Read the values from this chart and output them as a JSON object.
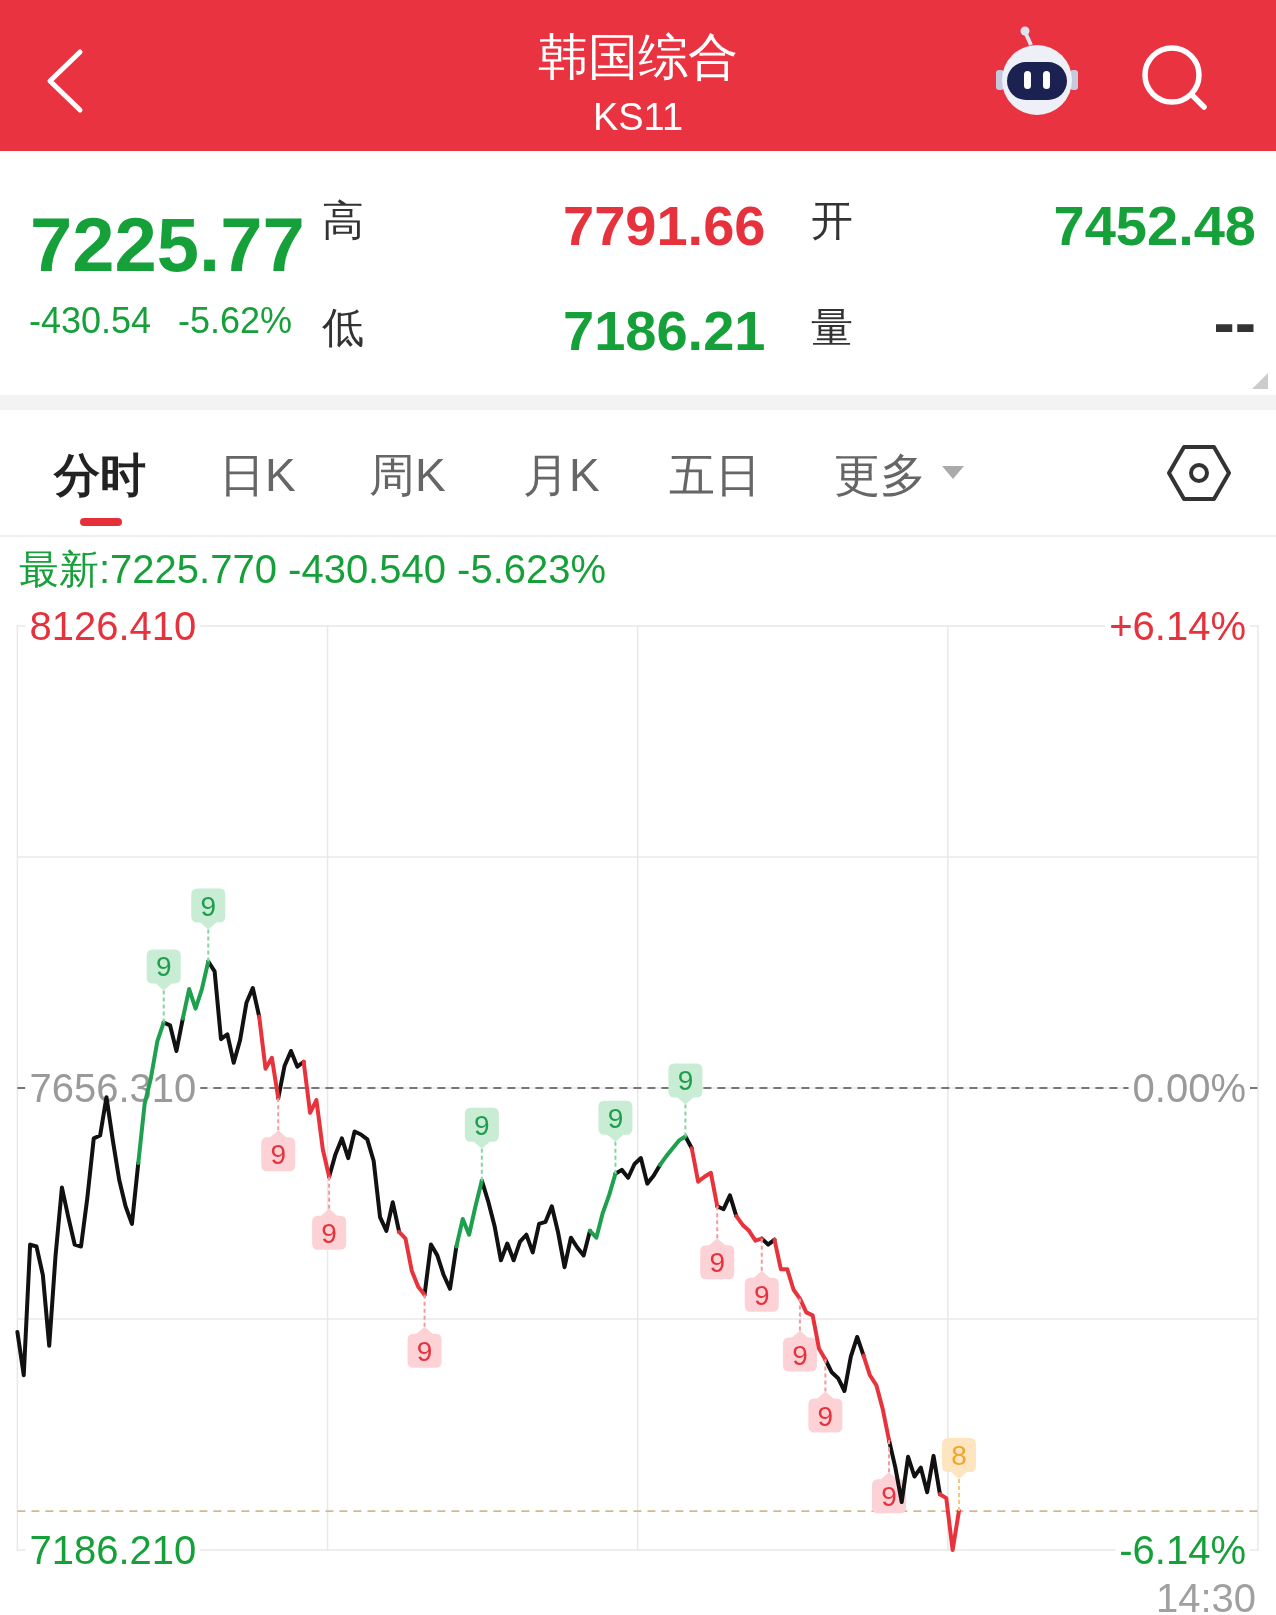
{
  "chart_data": {
    "type": "line",
    "title": "韩国综合",
    "subtitle": "KS11",
    "annotations": [
      "7225.77",
      "-430.54",
      "-5.62%",
      "高",
      "7791.66",
      "开",
      "7452.48",
      "低",
      "7186.21",
      "量",
      "--",
      "分时",
      "日K",
      "周K",
      "月K",
      "五日",
      "更多",
      "最新:7225.770 -430.540 -5.623%",
      "14:30",
      "9",
      "9",
      "9",
      "9",
      "9",
      "9",
      "9",
      "9",
      "9",
      "9",
      "9",
      "9",
      "9",
      "8"
    ],
    "categories": [
      null,
      null,
      null,
      null,
      null,
      null,
      null,
      null,
      null,
      null,
      null,
      null,
      null,
      null,
      null,
      null,
      null,
      null,
      null,
      null,
      null,
      null,
      null,
      null,
      null,
      null,
      null,
      null,
      null,
      null,
      null,
      null,
      null,
      null,
      null,
      null,
      null,
      null,
      null,
      null,
      null,
      null,
      null,
      null,
      null,
      null,
      null,
      null,
      null,
      null,
      null,
      null,
      null,
      null,
      null,
      null,
      null,
      null,
      null,
      null,
      null,
      null,
      null,
      null,
      null,
      null,
      null,
      null,
      null,
      null,
      null,
      null,
      null,
      null,
      null,
      null,
      null,
      null,
      null,
      null,
      null,
      null,
      null,
      null,
      null,
      null,
      null,
      null,
      null,
      null,
      null,
      null,
      null,
      null,
      null,
      null,
      null,
      null,
      null,
      null,
      null,
      null,
      null,
      null,
      null,
      null,
      null,
      null,
      null,
      null,
      null,
      null,
      null,
      null,
      null,
      null,
      null,
      null,
      null,
      null,
      null,
      null,
      null,
      null,
      null,
      null,
      null,
      null,
      null,
      null,
      null,
      null,
      null,
      null,
      null,
      null,
      null,
      null,
      null,
      null,
      null,
      null,
      null,
      null,
      null,
      null,
      null,
      null,
      null,
      null,
      null,
      null,
      null,
      null,
      null,
      null,
      null,
      null,
      null,
      null,
      null,
      null,
      null,
      null,
      null,
      null,
      null,
      null,
      null,
      null,
      null,
      null,
      null,
      null,
      null,
      null,
      null,
      null,
      null,
      null,
      null,
      null,
      null,
      null,
      null,
      null,
      null,
      null,
      null,
      null,
      null,
      null,
      null,
      null,
      null,
      null
    ],
    "series": [
      {
        "color": "#111111",
        "values": [
          7408,
          7364,
          7497,
          7495,
          7466,
          7394,
          7486,
          7555,
          7525,
          7497,
          7495,
          7545,
          7605,
          7608,
          7647,
          7603,
          7563,
          7536,
          7518,
          7580,
          null,
          null,
          null,
          7723,
          7720,
          7694,
          7727,
          null,
          null,
          null,
          7785,
          7775,
          7706,
          7711,
          7682,
          7705,
          7743,
          7758,
          7729,
          null,
          null,
          7646,
          7679,
          7694,
          7678,
          7683,
          null,
          null,
          null,
          7566,
          7589,
          7605,
          7585,
          7612,
          7609,
          7604,
          7582,
          7525,
          7511,
          7540,
          7510,
          null,
          null,
          null,
          7446,
          7497,
          7486,
          7466,
          7452,
          7495,
          null,
          null,
          null,
          7562,
          7541,
          7516,
          7481,
          7498,
          7481,
          7500,
          7507,
          7489,
          7518,
          7520,
          7536,
          7509,
          7474,
          7504,
          7494,
          7486,
          7511,
          null,
          null,
          null,
          7569,
          7573,
          7565,
          7579,
          7585,
          7559,
          7567,
          7578,
          null,
          null,
          null,
          7607,
          7595,
          null,
          null,
          null,
          7536,
          7533,
          7547,
          7526,
          null,
          null,
          null,
          7503,
          7497,
          7502,
          null,
          null,
          null,
          null,
          null,
          null,
          null,
          7380,
          7367,
          7361,
          7348,
          7383,
          7403,
          7384,
          null,
          null,
          null,
          7298,
          7270,
          7235,
          7281,
          7261,
          7270,
          7245,
          7282,
          7243,
          null,
          null,
          null,
          null,
          null,
          null,
          null,
          null,
          null,
          null,
          null,
          null,
          null,
          null,
          null,
          null,
          null,
          null,
          null,
          null,
          null,
          null,
          null,
          null,
          null,
          null,
          null,
          null,
          null,
          null,
          null,
          null,
          null,
          null,
          null,
          null,
          null,
          null,
          null,
          null,
          null,
          null,
          null,
          null,
          null,
          null,
          null,
          null,
          null,
          null
        ]
      },
      {
        "color": "#1ea04f",
        "values": [
          null,
          null,
          null,
          null,
          null,
          null,
          null,
          null,
          null,
          null,
          null,
          null,
          null,
          null,
          null,
          null,
          null,
          null,
          null,
          7580,
          7640,
          7667,
          7704,
          7723,
          null,
          null,
          7727,
          7757,
          7737,
          7757,
          7785,
          null,
          null,
          null,
          null,
          null,
          null,
          null,
          null,
          null,
          null,
          null,
          null,
          null,
          null,
          null,
          null,
          null,
          null,
          null,
          null,
          null,
          null,
          null,
          null,
          null,
          null,
          null,
          null,
          null,
          null,
          null,
          null,
          null,
          null,
          null,
          null,
          null,
          null,
          7495,
          7523,
          7507,
          7536,
          7562,
          null,
          null,
          null,
          null,
          null,
          null,
          null,
          null,
          null,
          null,
          null,
          null,
          null,
          null,
          null,
          null,
          7511,
          7504,
          7529,
          7547,
          7569,
          null,
          null,
          null,
          null,
          null,
          null,
          7578,
          7587,
          7595,
          7603,
          7607,
          null,
          null,
          null,
          null,
          null,
          null,
          null,
          null,
          null,
          null,
          null,
          null,
          null,
          null,
          null,
          null,
          null,
          null,
          null,
          null,
          null,
          null,
          null,
          null,
          null,
          null,
          null,
          null,
          null,
          null,
          null,
          null,
          null,
          null,
          null,
          null,
          null,
          null,
          null,
          null,
          null,
          null,
          null,
          null,
          null,
          null,
          null,
          null,
          null,
          null,
          null,
          null,
          null,
          null,
          null,
          null,
          null,
          null,
          null,
          null,
          null,
          null,
          null,
          null,
          null,
          null,
          null,
          null,
          null,
          null,
          null,
          null,
          null,
          null,
          null,
          null,
          null,
          null,
          null,
          null,
          null,
          null,
          null,
          null,
          null,
          null,
          null,
          null,
          null,
          null
        ]
      },
      {
        "color": "#e8333c",
        "values": [
          null,
          null,
          null,
          null,
          null,
          null,
          null,
          null,
          null,
          null,
          null,
          null,
          null,
          null,
          null,
          null,
          null,
          null,
          null,
          null,
          null,
          null,
          null,
          null,
          null,
          null,
          null,
          null,
          null,
          null,
          null,
          null,
          null,
          null,
          null,
          null,
          null,
          null,
          7729,
          7676,
          7687,
          7646,
          null,
          null,
          null,
          7683,
          7631,
          7644,
          7594,
          7566,
          null,
          null,
          null,
          null,
          null,
          null,
          null,
          null,
          null,
          null,
          7510,
          7503,
          7470,
          7454,
          7446,
          null,
          null,
          null,
          null,
          null,
          null,
          null,
          null,
          null,
          null,
          null,
          null,
          null,
          null,
          null,
          null,
          null,
          null,
          null,
          null,
          null,
          null,
          null,
          null,
          null,
          null,
          null,
          null,
          null,
          null,
          null,
          null,
          null,
          null,
          null,
          null,
          null,
          null,
          null,
          null,
          null,
          7595,
          7561,
          7566,
          7570,
          7536,
          null,
          null,
          7526,
          7517,
          7511,
          7501,
          7503,
          null,
          7502,
          7472,
          7472,
          7451,
          7442,
          7428,
          7425,
          7391,
          7380,
          null,
          null,
          null,
          null,
          null,
          7384,
          7364,
          7354,
          7330,
          7298,
          null,
          null,
          null,
          null,
          null,
          null,
          null,
          7243,
          7239,
          7186.21,
          7226,
          null,
          null,
          null,
          null,
          null,
          null,
          null,
          null,
          null,
          null,
          null,
          null,
          null,
          null,
          null,
          null,
          null,
          null,
          null,
          null,
          null,
          null,
          null,
          null,
          null,
          null,
          null,
          null,
          null,
          null,
          null,
          null,
          null,
          null,
          null,
          null,
          null,
          null,
          null,
          null,
          null,
          null,
          null,
          null,
          null,
          null,
          null
        ]
      }
    ],
    "ylim": [
      7186.21,
      8126.41
    ],
    "yticks": [
      {
        "value": 7186.21,
        "label": "7186.210"
      },
      {
        "value": 7421.26,
        "label": null
      },
      {
        "value": 7656.31,
        "label": "7656.310"
      },
      {
        "value": 7891.36,
        "label": null
      },
      {
        "value": 8126.41,
        "label": "8126.410"
      }
    ],
    "y2lim": [
      -6.14,
      6.14
    ],
    "y2ticks": [
      {
        "value": -6.14,
        "label": "-6.14%"
      },
      {
        "value": 0,
        "label": "0.00%"
      },
      {
        "value": 6.14,
        "label": "+6.14%"
      }
    ],
    "ref_lines": [
      {
        "axis": "y",
        "value": 7656.31,
        "color": "#777777",
        "line_style": "dashed"
      },
      {
        "axis": "y",
        "value": 7225.77,
        "color": "#d7b88e",
        "line_style": "dashed"
      }
    ],
    "grid": true
  }
}
